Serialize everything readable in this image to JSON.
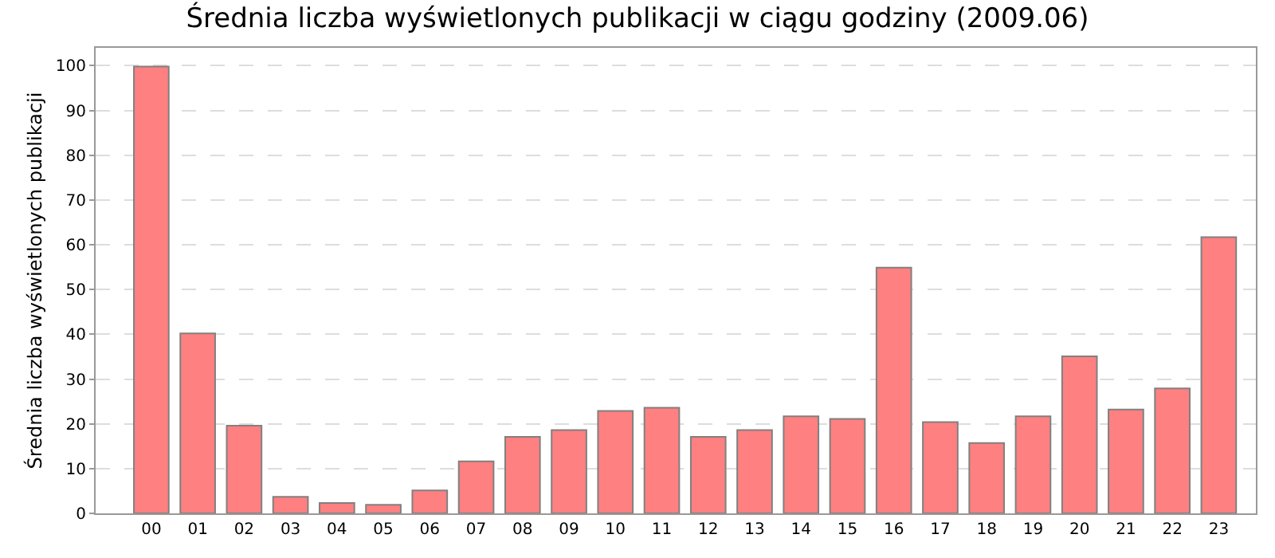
{
  "chart_data": {
    "type": "bar",
    "title": "Średnia liczba wyświetlonych publikacji w ciągu godziny (2009.06)",
    "ylabel": "Średnia liczba wyświetlonych publikacji",
    "categories": [
      "00",
      "01",
      "02",
      "03",
      "04",
      "05",
      "06",
      "07",
      "08",
      "09",
      "10",
      "11",
      "12",
      "13",
      "14",
      "15",
      "16",
      "17",
      "18",
      "19",
      "20",
      "21",
      "22",
      "23"
    ],
    "values": [
      99.8,
      40.2,
      19.6,
      3.7,
      2.3,
      1.9,
      5.1,
      11.6,
      17.1,
      18.6,
      22.9,
      23.6,
      17.1,
      18.6,
      21.7,
      21.1,
      54.9,
      20.4,
      15.7,
      21.7,
      35.1,
      23.2,
      27.9,
      61.7
    ],
    "color": "#ff8080",
    "ylim": [
      0,
      104
    ],
    "yticks": [
      0,
      10,
      20,
      30,
      40,
      50,
      60,
      70,
      80,
      90,
      100
    ],
    "grid": "y"
  }
}
